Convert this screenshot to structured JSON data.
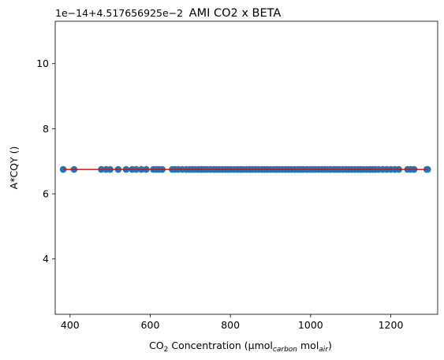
{
  "chart_data": {
    "type": "scatter",
    "title": "AMI CO2 x BETA",
    "ylabel": "A*CQY ()",
    "xlabel": {
      "prefix": "CO",
      "prefix_sub": "2",
      "middle": " Concentration (µmol",
      "unit1_sub": "carbon",
      "space": " mol",
      "unit2_sub": "air",
      "suffix": ")"
    },
    "y_offset_text": "1e−14+4.517656925e−2",
    "xlim": [
      363,
      1317
    ],
    "ylim": [
      2.3,
      11.3
    ],
    "x_ticks": [
      400,
      600,
      800,
      1000,
      1200
    ],
    "y_ticks": [
      4,
      6,
      8,
      10
    ],
    "grid": false,
    "colors": {
      "points": "#1f77b4",
      "fit_line": "#ff0000"
    },
    "fit_line": {
      "x": [
        383,
        1292
      ],
      "y": [
        6.75,
        6.75
      ]
    },
    "series": [
      {
        "y_constant": 6.75,
        "x": [
          383,
          410,
          478,
          490,
          500,
          520,
          540,
          555,
          565,
          578,
          590,
          608,
          615,
          622,
          630,
          655,
          662,
          670,
          680,
          690,
          698,
          705,
          712,
          720,
          728,
          735,
          742,
          750,
          758,
          765,
          772,
          780,
          788,
          795,
          802,
          810,
          818,
          825,
          832,
          840,
          848,
          855,
          862,
          870,
          878,
          885,
          892,
          900,
          908,
          915,
          922,
          930,
          938,
          945,
          952,
          960,
          968,
          975,
          982,
          990,
          998,
          1005,
          1012,
          1020,
          1028,
          1035,
          1042,
          1050,
          1058,
          1065,
          1072,
          1080,
          1088,
          1095,
          1102,
          1110,
          1118,
          1125,
          1132,
          1140,
          1148,
          1155,
          1162,
          1170,
          1180,
          1190,
          1200,
          1210,
          1220,
          1242,
          1250,
          1258,
          1290,
          1292
        ]
      }
    ]
  }
}
